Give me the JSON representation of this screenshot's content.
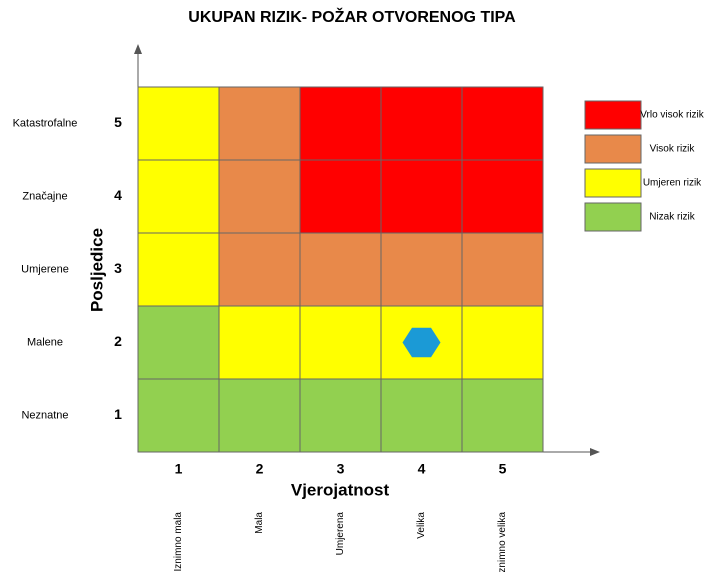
{
  "title": "UKUPAN RIZIK- POŽAR OTVORENOG TIPA",
  "y_axis": {
    "label": "Posljedice",
    "levels": [
      {
        "value": 1,
        "label": "Neznatne"
      },
      {
        "value": 2,
        "label": "Malene"
      },
      {
        "value": 3,
        "label": "Umjerene"
      },
      {
        "value": 4,
        "label": "Značajne"
      },
      {
        "value": 5,
        "label": "Katastrofalne"
      }
    ]
  },
  "x_axis": {
    "label": "Vjerojatnost",
    "levels": [
      {
        "value": 1,
        "label": "Iznimno mala"
      },
      {
        "value": 2,
        "label": "Mala"
      },
      {
        "value": 3,
        "label": "Umjerena"
      },
      {
        "value": 4,
        "label": "Velika"
      },
      {
        "value": 5,
        "label": "Iznimno velika"
      }
    ]
  },
  "legend": [
    {
      "label": "Vrlo visok rizik",
      "color": "#ff0000"
    },
    {
      "label": "Visok rizik",
      "color": "#e8894a"
    },
    {
      "label": "Umjeren rizik",
      "color": "#ffff00"
    },
    {
      "label": "Nizak rizik",
      "color": "#92d050"
    }
  ],
  "cells": [
    [
      "#92d050",
      "#92d050",
      "#92d050",
      "#92d050",
      "#92d050"
    ],
    [
      "#92d050",
      "#ffff00",
      "#ffff00",
      "#ffff00",
      "#ffff00"
    ],
    [
      "#ffff00",
      "#e8894a",
      "#e8894a",
      "#e8894a",
      "#e8894a"
    ],
    [
      "#ffff00",
      "#e8894a",
      "#ff0000",
      "#ff0000",
      "#ff0000"
    ],
    [
      "#ffff00",
      "#e8894a",
      "#ff0000",
      "#ff0000",
      "#ff0000"
    ]
  ],
  "marker": {
    "color": "#1b9ad6",
    "probability": 4,
    "consequence": 2
  }
}
